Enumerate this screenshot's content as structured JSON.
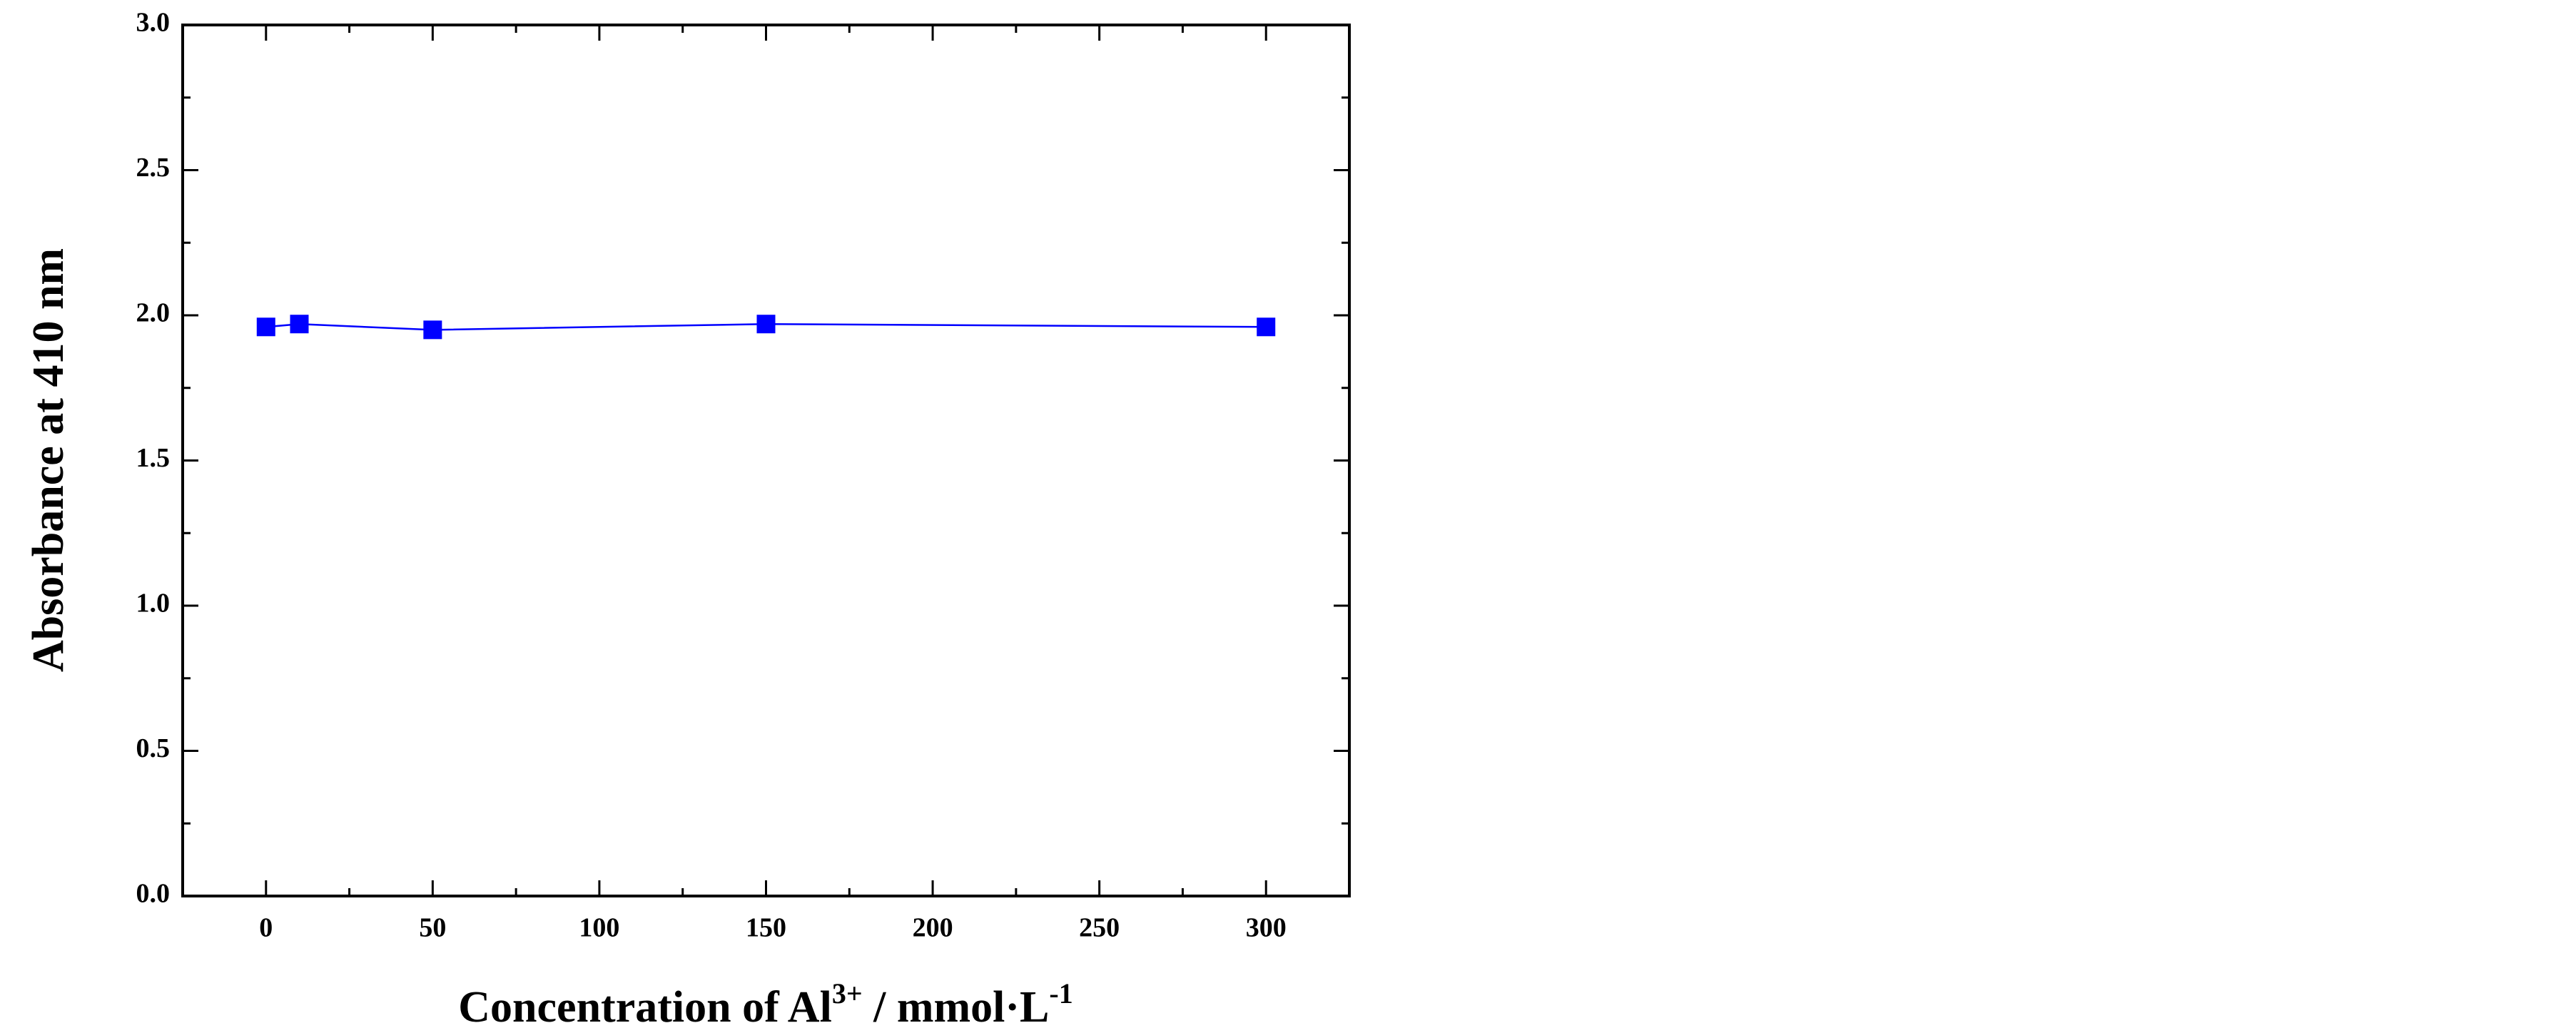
{
  "chart_data": {
    "type": "line",
    "xlabel": [
      "Concentration of Al",
      "3+",
      " / mmol·L",
      "-1"
    ],
    "ylabel": "Absorbance at 410 nm",
    "x": [
      0,
      10,
      50,
      150,
      300
    ],
    "series": [
      {
        "color": "#0000ff",
        "values": [
          1.96,
          1.97,
          1.95,
          1.97,
          1.96
        ]
      }
    ],
    "xlim": [
      -25,
      325
    ],
    "xticks": [
      0,
      50,
      100,
      150,
      200,
      250,
      300
    ],
    "ylim": [
      0,
      3
    ],
    "yticks": [
      {
        "value": 0,
        "label": "0.0"
      },
      0.5,
      {
        "value": 1,
        "label": "1.0"
      },
      1.5,
      {
        "value": 2,
        "label": "2.0"
      },
      2.5,
      {
        "value": 3,
        "label": "3.0"
      }
    ]
  }
}
